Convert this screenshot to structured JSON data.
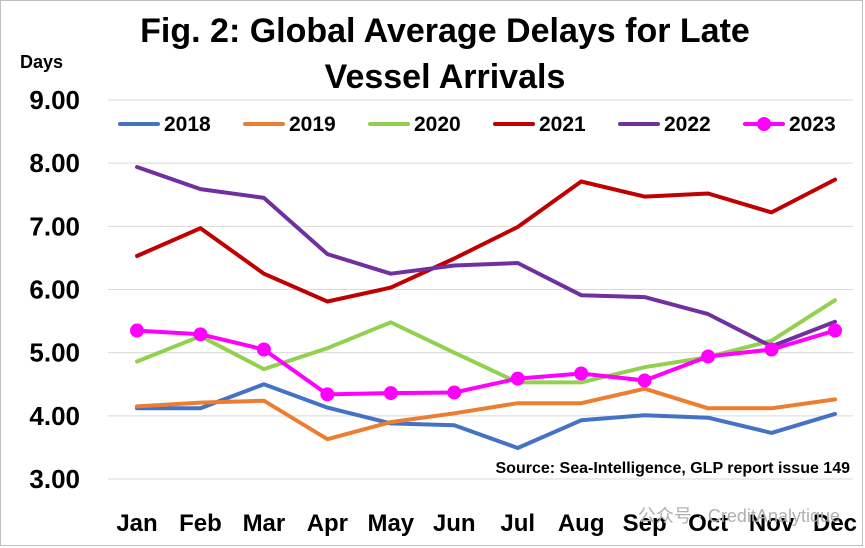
{
  "chart_data": {
    "type": "line",
    "title_lines": [
      "Fig. 2: Global Average Delays for Late",
      "Vessel Arrivals"
    ],
    "ylabel": "Days",
    "xlabel": "",
    "ylim": [
      3,
      9
    ],
    "yticks": [
      "3.00",
      "4.00",
      "5.00",
      "6.00",
      "7.00",
      "8.00",
      "9.00"
    ],
    "ytick_values": [
      3,
      4,
      5,
      6,
      7,
      8,
      9
    ],
    "categories": [
      "Jan",
      "Feb",
      "Mar",
      "Apr",
      "May",
      "Jun",
      "Jul",
      "Aug",
      "Sep",
      "Oct",
      "Nov",
      "Dec"
    ],
    "grid": "horizontal",
    "legend_position": "top",
    "series": [
      {
        "name": "2018",
        "color": "#4472c4",
        "markers": false,
        "values": [
          4.12,
          4.12,
          4.5,
          4.13,
          3.88,
          3.85,
          3.49,
          3.93,
          4.01,
          3.97,
          3.73,
          4.03
        ]
      },
      {
        "name": "2019",
        "color": "#ed7d31",
        "markers": false,
        "values": [
          4.15,
          4.21,
          4.24,
          3.63,
          3.9,
          4.04,
          4.2,
          4.2,
          4.43,
          4.12,
          4.12,
          4.26
        ]
      },
      {
        "name": "2020",
        "color": "#92d050",
        "markers": false,
        "values": [
          4.86,
          5.26,
          4.74,
          5.07,
          5.48,
          5.0,
          4.53,
          4.53,
          4.77,
          4.93,
          5.19,
          5.83
        ]
      },
      {
        "name": "2021",
        "color": "#c00000",
        "markers": false,
        "values": [
          6.53,
          6.97,
          6.25,
          5.81,
          6.03,
          6.49,
          6.99,
          7.71,
          7.47,
          7.52,
          7.22,
          7.74
        ]
      },
      {
        "name": "2022",
        "color": "#7030a0",
        "markers": false,
        "values": [
          7.94,
          7.59,
          7.45,
          6.56,
          6.25,
          6.38,
          6.42,
          5.91,
          5.88,
          5.61,
          5.1,
          5.49
        ]
      },
      {
        "name": "2023",
        "color": "#ff00ff",
        "markers": true,
        "values": [
          5.35,
          5.29,
          5.05,
          4.34,
          4.36,
          4.37,
          4.59,
          4.67,
          4.56,
          4.94,
          5.05,
          5.35
        ]
      }
    ],
    "source_note": "Source: Sea-Intelligence, GLP report issue 149"
  },
  "watermark": "公众号 · CreditAnalytique"
}
